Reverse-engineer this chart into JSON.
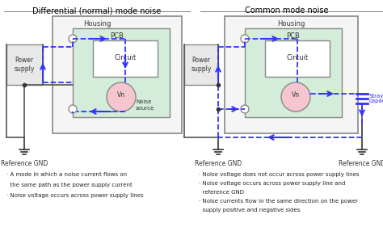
{
  "bg_color": "#ffffff",
  "title_left": "Differential (normal) mode noise",
  "title_right": "Common mode noise",
  "housing_color": "#f0f0f0",
  "pcb_color": "#d4edda",
  "circuit_color": "#ffffff",
  "noise_circle_color": "#f5c6d0",
  "arrow_color": "#0000cc",
  "line_color": "#555555",
  "blue_dashed": "#3333ff",
  "text_color": "#000000",
  "stray_color": "#3333ff",
  "desc_left": [
    "· A mode in which a noise current flows on",
    "  the same path as the power supply current",
    "· Noise voltage occurs across power supply lines"
  ],
  "desc_right": [
    "· Noise voltage does not occur across power supply lines",
    "· Noise voltage occurs across power supply line and",
    "  reference GND",
    "· Noise currents flow in the same direction on the power",
    "  supply positive and negative sides"
  ]
}
